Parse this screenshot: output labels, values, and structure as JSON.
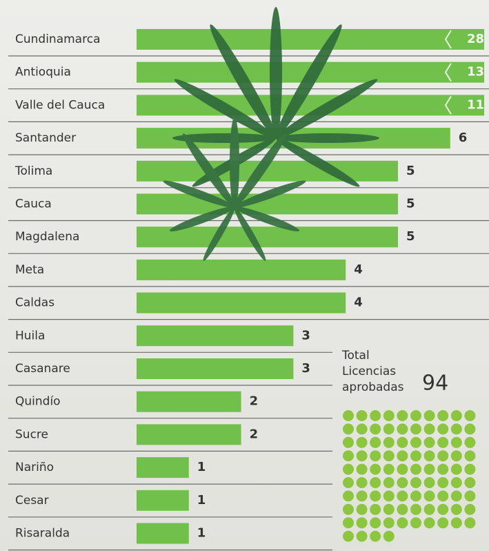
{
  "chart_data": {
    "type": "bar",
    "orientation": "horizontal",
    "categories": [
      "Cundinamarca",
      "Antioquia",
      "Valle del Cauca",
      "Santander",
      "Tolima",
      "Cauca",
      "Magdalena",
      "Meta",
      "Caldas",
      "Huila",
      "Casanare",
      "Quindío",
      "Sucre",
      "Nariño",
      "Cesar",
      "Risaralda"
    ],
    "values": [
      28,
      13,
      11,
      6,
      5,
      5,
      5,
      4,
      4,
      3,
      3,
      2,
      2,
      1,
      1,
      1
    ],
    "color": "#72c04c",
    "total_label": [
      "Total",
      "Licencias",
      "aprobadas"
    ],
    "total": 94,
    "dot_color": "#8cc63e"
  }
}
